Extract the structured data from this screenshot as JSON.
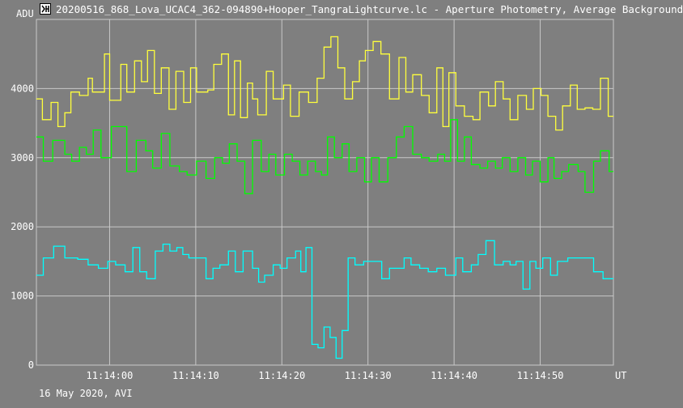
{
  "window": {
    "title": "20200516_868_Lova_UCAC4_362-094890+Hooper_TangraLightcurve.lc - Aperture Photometry, Average Background"
  },
  "footer": {
    "date_label": "16 May 2020, AVI"
  },
  "colors": {
    "background": "#7f7f7f",
    "grid": "#c8c8c8",
    "axis_text": "#ffffff"
  },
  "chart_data": {
    "type": "line",
    "title": "",
    "xlabel": "UT",
    "ylabel": "ADU",
    "xlim": [
      "11:13:51.5",
      "11:14:58.5"
    ],
    "ylim": [
      0,
      5000
    ],
    "x_ticks": [
      "11:14:00",
      "11:14:10",
      "11:14:20",
      "11:14:30",
      "11:14:40",
      "11:14:50"
    ],
    "y_ticks": [
      0,
      1000,
      2000,
      3000,
      4000
    ],
    "grid": true,
    "legend": "none",
    "series": [
      {
        "color": "#ffff3c",
        "x": [
          "11:13:51.5",
          "11:13:52.2",
          "11:13:53.2",
          "11:13:54.0",
          "11:13:54.8",
          "11:13:55.5",
          "11:13:56.5",
          "11:13:57.5",
          "11:13:58.0",
          "11:13:59.4",
          "11:14:00.0",
          "11:14:01.3",
          "11:14:02.0",
          "11:14:02.9",
          "11:14:03.7",
          "11:14:04.4",
          "11:14:05.2",
          "11:14:06.0",
          "11:14:06.9",
          "11:14:07.7",
          "11:14:08.6",
          "11:14:09.4",
          "11:14:10.1",
          "11:14:11.4",
          "11:14:12.1",
          "11:14:13.0",
          "11:14:13.8",
          "11:14:14.5",
          "11:14:15.2",
          "11:14:16.0",
          "11:14:16.6",
          "11:14:17.2",
          "11:14:18.2",
          "11:14:19.0",
          "11:14:20.2",
          "11:14:21.0",
          "11:14:22.0",
          "11:14:23.1",
          "11:14:24.1",
          "11:14:24.9",
          "11:14:25.7",
          "11:14:26.5",
          "11:14:27.3",
          "11:14:28.2",
          "11:14:29.0",
          "11:14:29.7",
          "11:14:30.6",
          "11:14:31.5",
          "11:14:32.5",
          "11:14:33.6",
          "11:14:34.4",
          "11:14:35.2",
          "11:14:36.2",
          "11:14:37.1",
          "11:14:38.0",
          "11:14:38.7",
          "11:14:39.4",
          "11:14:40.2",
          "11:14:41.2",
          "11:14:42.2",
          "11:14:43.0",
          "11:14:44.0",
          "11:14:44.8",
          "11:14:45.7",
          "11:14:46.5",
          "11:14:47.4",
          "11:14:48.4",
          "11:14:49.2",
          "11:14:50.1",
          "11:14:50.9",
          "11:14:51.8",
          "11:14:52.6",
          "11:14:53.5",
          "11:14:54.3",
          "11:14:55.2",
          "11:14:56.1",
          "11:14:57.0",
          "11:14:57.9"
        ],
        "y": [
          3850,
          3550,
          3800,
          3450,
          3650,
          3950,
          3900,
          4150,
          3950,
          4500,
          3830,
          4350,
          3950,
          4400,
          4100,
          4550,
          3930,
          4300,
          3700,
          4250,
          3800,
          4300,
          3950,
          3980,
          4350,
          4500,
          3620,
          4400,
          3580,
          4080,
          3850,
          3620,
          4250,
          3850,
          4050,
          3600,
          3950,
          3800,
          4150,
          4600,
          4750,
          4300,
          3850,
          4100,
          4400,
          4550,
          4680,
          4500,
          3850,
          4450,
          3950,
          4200,
          3900,
          3650,
          4300,
          3450,
          4230,
          3750,
          3600,
          3550,
          3950,
          3750,
          4100,
          3850,
          3550,
          3900,
          3700,
          4000,
          3900,
          3600,
          3400,
          3750,
          4050,
          3700,
          3720,
          3700,
          4150,
          3600
        ]
      },
      {
        "color": "#00ff00",
        "x": [
          "11:13:51.5",
          "11:13:52.3",
          "11:13:53.4",
          "11:13:54.8",
          "11:13:55.6",
          "11:13:56.5",
          "11:13:57.3",
          "11:13:58.1",
          "11:13:59.0",
          "11:14:00.2",
          "11:14:02.0",
          "11:14:03.1",
          "11:14:04.2",
          "11:14:05.0",
          "11:14:06.0",
          "11:14:07.0",
          "11:14:08.1",
          "11:14:09.0",
          "11:14:10.1",
          "11:14:11.2",
          "11:14:12.2",
          "11:14:13.1",
          "11:14:13.9",
          "11:14:14.8",
          "11:14:15.7",
          "11:14:16.6",
          "11:14:17.6",
          "11:14:18.5",
          "11:14:19.3",
          "11:14:20.3",
          "11:14:21.2",
          "11:14:22.1",
          "11:14:23.0",
          "11:14:23.9",
          "11:14:24.6",
          "11:14:25.3",
          "11:14:26.1",
          "11:14:27.0",
          "11:14:27.8",
          "11:14:28.7",
          "11:14:29.6",
          "11:14:30.4",
          "11:14:31.3",
          "11:14:32.3",
          "11:14:33.3",
          "11:14:34.2",
          "11:14:35.2",
          "11:14:36.2",
          "11:14:37.1",
          "11:14:38.1",
          "11:14:38.9",
          "11:14:39.6",
          "11:14:40.4",
          "11:14:41.2",
          "11:14:42.0",
          "11:14:43.0",
          "11:14:43.9",
          "11:14:44.8",
          "11:14:45.6",
          "11:14:46.5",
          "11:14:47.4",
          "11:14:48.3",
          "11:14:49.1",
          "11:14:50.0",
          "11:14:50.9",
          "11:14:51.6",
          "11:14:52.5",
          "11:14:53.3",
          "11:14:54.4",
          "11:14:55.2",
          "11:14:56.2",
          "11:14:57.0",
          "11:14:58.0"
        ],
        "y": [
          3300,
          2950,
          3250,
          3050,
          2950,
          3150,
          3050,
          3400,
          3000,
          3450,
          2800,
          3250,
          3100,
          2850,
          3350,
          2880,
          2800,
          2750,
          2950,
          2700,
          3000,
          2920,
          3200,
          2950,
          2480,
          3250,
          2800,
          3050,
          2750,
          3050,
          2950,
          2750,
          2950,
          2800,
          2750,
          3300,
          3000,
          3200,
          2800,
          3000,
          2650,
          3000,
          2650,
          3000,
          3300,
          3450,
          3050,
          3000,
          2950,
          3050,
          2950,
          3550,
          2950,
          3300,
          2900,
          2850,
          2950,
          2850,
          3000,
          2800,
          3000,
          2750,
          2950,
          2650,
          3000,
          2700,
          2800,
          2900,
          2800,
          2500,
          2950,
          3100,
          2800
        ]
      },
      {
        "color": "#00ffff",
        "x": [
          "11:13:51.5",
          "11:13:52.3",
          "11:13:53.5",
          "11:13:54.8",
          "11:13:56.3",
          "11:13:57.5",
          "11:13:58.7",
          "11:13:59.8",
          "11:14:00.7",
          "11:14:01.8",
          "11:14:02.7",
          "11:14:03.5",
          "11:14:04.3",
          "11:14:05.3",
          "11:14:06.2",
          "11:14:07.0",
          "11:14:07.8",
          "11:14:08.5",
          "11:14:09.2",
          "11:14:10.2",
          "11:14:11.2",
          "11:14:12.0",
          "11:14:12.8",
          "11:14:13.8",
          "11:14:14.6",
          "11:14:15.5",
          "11:14:16.6",
          "11:14:17.3",
          "11:14:18.0",
          "11:14:19.0",
          "11:14:19.8",
          "11:14:20.6",
          "11:14:21.6",
          "11:14:22.2",
          "11:14:22.8",
          "11:14:23.5",
          "11:14:24.2",
          "11:14:24.9",
          "11:14:25.6",
          "11:14:26.3",
          "11:14:27.0",
          "11:14:27.7",
          "11:14:28.5",
          "11:14:29.5",
          "11:14:30.7",
          "11:14:31.6",
          "11:14:32.5",
          "11:14:33.4",
          "11:14:34.2",
          "11:14:35.0",
          "11:14:36.0",
          "11:14:37.0",
          "11:14:38.0",
          "11:14:39.0",
          "11:14:40.2",
          "11:14:41.0",
          "11:14:42.0",
          "11:14:42.8",
          "11:14:43.7",
          "11:14:44.7",
          "11:14:45.7",
          "11:14:46.5",
          "11:14:47.2",
          "11:14:48.0",
          "11:14:48.8",
          "11:14:49.5",
          "11:14:50.3",
          "11:14:51.2",
          "11:14:52.0",
          "11:14:53.2",
          "11:14:54.2",
          "11:14:55.2",
          "11:14:56.2",
          "11:14:57.3",
          "11:14:58.0"
        ],
        "y": [
          1300,
          1550,
          1720,
          1550,
          1530,
          1450,
          1400,
          1500,
          1450,
          1350,
          1700,
          1350,
          1250,
          1650,
          1750,
          1650,
          1700,
          1600,
          1550,
          1550,
          1250,
          1400,
          1450,
          1650,
          1350,
          1650,
          1400,
          1200,
          1300,
          1450,
          1400,
          1550,
          1650,
          1350,
          1700,
          300,
          250,
          550,
          400,
          100,
          500,
          1550,
          1450,
          1500,
          1500,
          1250,
          1400,
          1400,
          1550,
          1450,
          1400,
          1350,
          1400,
          1300,
          1550,
          1350,
          1450,
          1600,
          1800,
          1450,
          1500,
          1450,
          1500,
          1100,
          1500,
          1400,
          1550,
          1300,
          1500,
          1550,
          1550,
          1550,
          1350,
          1250,
          1250
        ]
      }
    ]
  }
}
